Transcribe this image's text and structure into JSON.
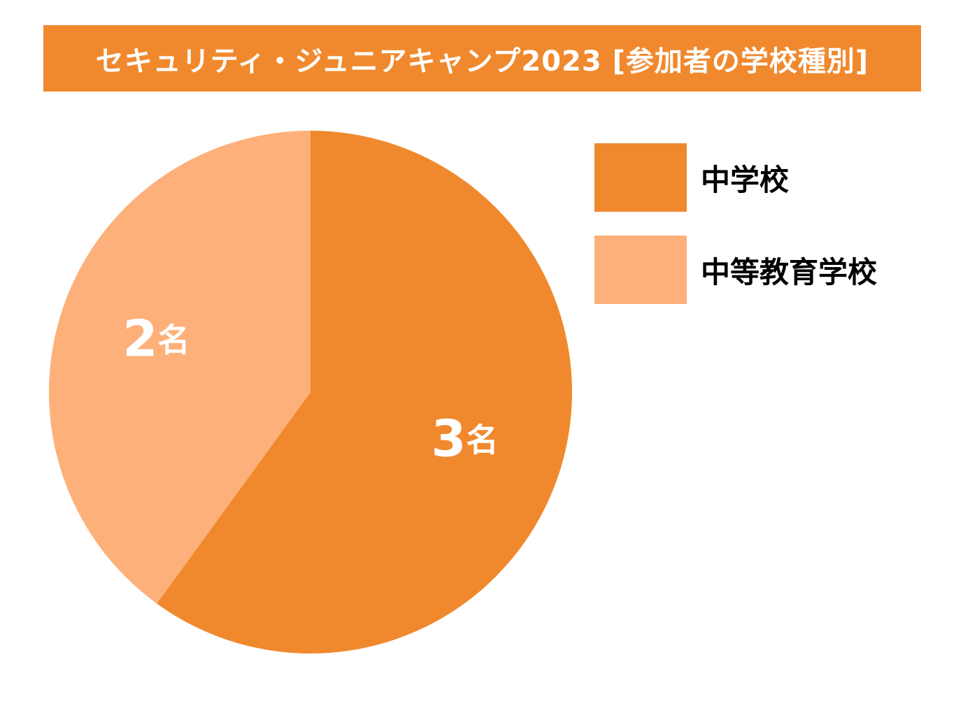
{
  "chart_data": {
    "type": "pie",
    "title": "セキュリティ・ジュニアキャンプ2023 [参加者の学校種別]",
    "unit": "名",
    "slices": [
      {
        "label": "中学校",
        "value": 3,
        "color": "#F0892E"
      },
      {
        "label": "中等教育学校",
        "value": 2,
        "color": "#FDB07A"
      }
    ],
    "start_angle_deg": 0,
    "direction": "clockwise",
    "legend_position": "right"
  },
  "colors": {
    "banner": "#F0892E",
    "banner_text": "#ffffff",
    "slice_label_text": "#ffffff"
  }
}
